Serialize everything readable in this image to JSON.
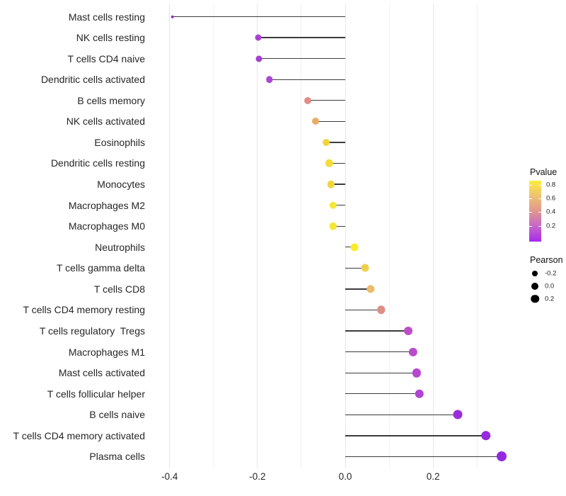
{
  "chart_data": {
    "type": "scatter",
    "variant": "lollipop",
    "title": "",
    "xlabel": "",
    "ylabel": "",
    "x_tick_labels": [
      "-0.4",
      "-0.2",
      "0.0",
      "0.2"
    ],
    "x_tick_values": [
      -0.4,
      -0.2,
      0.0,
      0.2
    ],
    "x_minor_values": [
      -0.3,
      -0.1,
      0.1,
      0.3
    ],
    "xlim": [
      -0.448,
      0.407
    ],
    "grid": true,
    "baseline_x": 0.0,
    "categories_top_to_bottom": [
      "Mast cells resting",
      "NK cells resting",
      "T cells CD4 naive",
      "Dendritic cells activated",
      "B cells memory",
      "NK cells activated",
      "Eosinophils",
      "Dendritic cells resting",
      "Monocytes",
      "Macrophages M2",
      "Macrophages M0",
      "Neutrophils",
      "T cells gamma delta",
      "T cells CD8",
      "T cells CD4 memory resting",
      "T cells regulatory  Tregs",
      "Macrophages M1",
      "Mast cells activated",
      "T cells follicular helper",
      "B cells naive",
      "T cells CD4 memory activated",
      "Plasma cells"
    ],
    "points": [
      {
        "label": "Mast cells resting",
        "pearson": -0.394,
        "dot_color": "#9232C8",
        "dot_diameter": 4.5
      },
      {
        "label": "NK cells resting",
        "pearson": -0.199,
        "dot_color": "#A843D4",
        "dot_diameter": 9.0
      },
      {
        "label": "T cells CD4 naive",
        "pearson": -0.196,
        "dot_color": "#A43FD6",
        "dot_diameter": 9.0
      },
      {
        "label": "Dendritic cells activated",
        "pearson": -0.173,
        "dot_color": "#AB47D4",
        "dot_diameter": 9.5
      },
      {
        "label": "B cells memory",
        "pearson": -0.086,
        "dot_color": "#E28C85",
        "dot_diameter": 10.0
      },
      {
        "label": "NK cells activated",
        "pearson": -0.068,
        "dot_color": "#ECAD66",
        "dot_diameter": 10.0
      },
      {
        "label": "Eosinophils",
        "pearson": -0.044,
        "dot_color": "#F2D33C",
        "dot_diameter": 10.0
      },
      {
        "label": "Dendritic cells resting",
        "pearson": -0.037,
        "dot_color": "#F4DC3C",
        "dot_diameter": 10.5
      },
      {
        "label": "Monocytes",
        "pearson": -0.033,
        "dot_color": "#F0D63E",
        "dot_diameter": 10.5
      },
      {
        "label": "Macrophages M2",
        "pearson": -0.028,
        "dot_color": "#F7E636",
        "dot_diameter": 10.5
      },
      {
        "label": "Macrophages M0",
        "pearson": -0.028,
        "dot_color": "#F7E636",
        "dot_diameter": 10.5
      },
      {
        "label": "Neutrophils",
        "pearson": 0.021,
        "dot_color": "#F9EC26",
        "dot_diameter": 11.0
      },
      {
        "label": "T cells gamma delta",
        "pearson": 0.045,
        "dot_color": "#EFCF4E",
        "dot_diameter": 11.0
      },
      {
        "label": "T cells CD8",
        "pearson": 0.058,
        "dot_color": "#EBBC69",
        "dot_diameter": 11.3
      },
      {
        "label": "T cells CD4 memory resting",
        "pearson": 0.082,
        "dot_color": "#DE8F85",
        "dot_diameter": 11.5
      },
      {
        "label": "T cells regulatory  Tregs",
        "pearson": 0.143,
        "dot_color": "#BC4EC7",
        "dot_diameter": 12.0
      },
      {
        "label": "Macrophages M1",
        "pearson": 0.154,
        "dot_color": "#B94BCB",
        "dot_diameter": 12.3
      },
      {
        "label": "Mast cells activated",
        "pearson": 0.162,
        "dot_color": "#B648CE",
        "dot_diameter": 12.3
      },
      {
        "label": "T cells follicular helper",
        "pearson": 0.169,
        "dot_color": "#B244D2",
        "dot_diameter": 12.5
      },
      {
        "label": "B cells naive",
        "pearson": 0.256,
        "dot_color": "#9C2DDA",
        "dot_diameter": 13.0
      },
      {
        "label": "T cells CD4 memory activated",
        "pearson": 0.32,
        "dot_color": "#9728E0",
        "dot_diameter": 13.5
      },
      {
        "label": "Plasma cells",
        "pearson": 0.356,
        "dot_color": "#9428E2",
        "dot_diameter": 14.0
      }
    ],
    "legend_position": "right",
    "legends": {
      "pvalue": {
        "title": "Pvalue",
        "tick_labels": [
          "0.8",
          "0.6",
          "0.4",
          "0.2"
        ],
        "gradient_top_to_bottom": [
          "#FBEC3C",
          "#EEC273",
          "#E0968F",
          "#C765C9",
          "#A62BEC"
        ]
      },
      "pearson": {
        "title": "Pearson",
        "items": [
          {
            "label": "-0.2",
            "diameter": 8.0
          },
          {
            "label": "0.0",
            "diameter": 10.0
          },
          {
            "label": "0.2",
            "diameter": 11.5
          }
        ]
      }
    },
    "colors": {
      "segment": "#3c3c3c",
      "grid_major": "#e7e7e7",
      "grid_minor": "#f2f2f2",
      "background": "#ffffff",
      "axis_text": "#262626"
    }
  }
}
